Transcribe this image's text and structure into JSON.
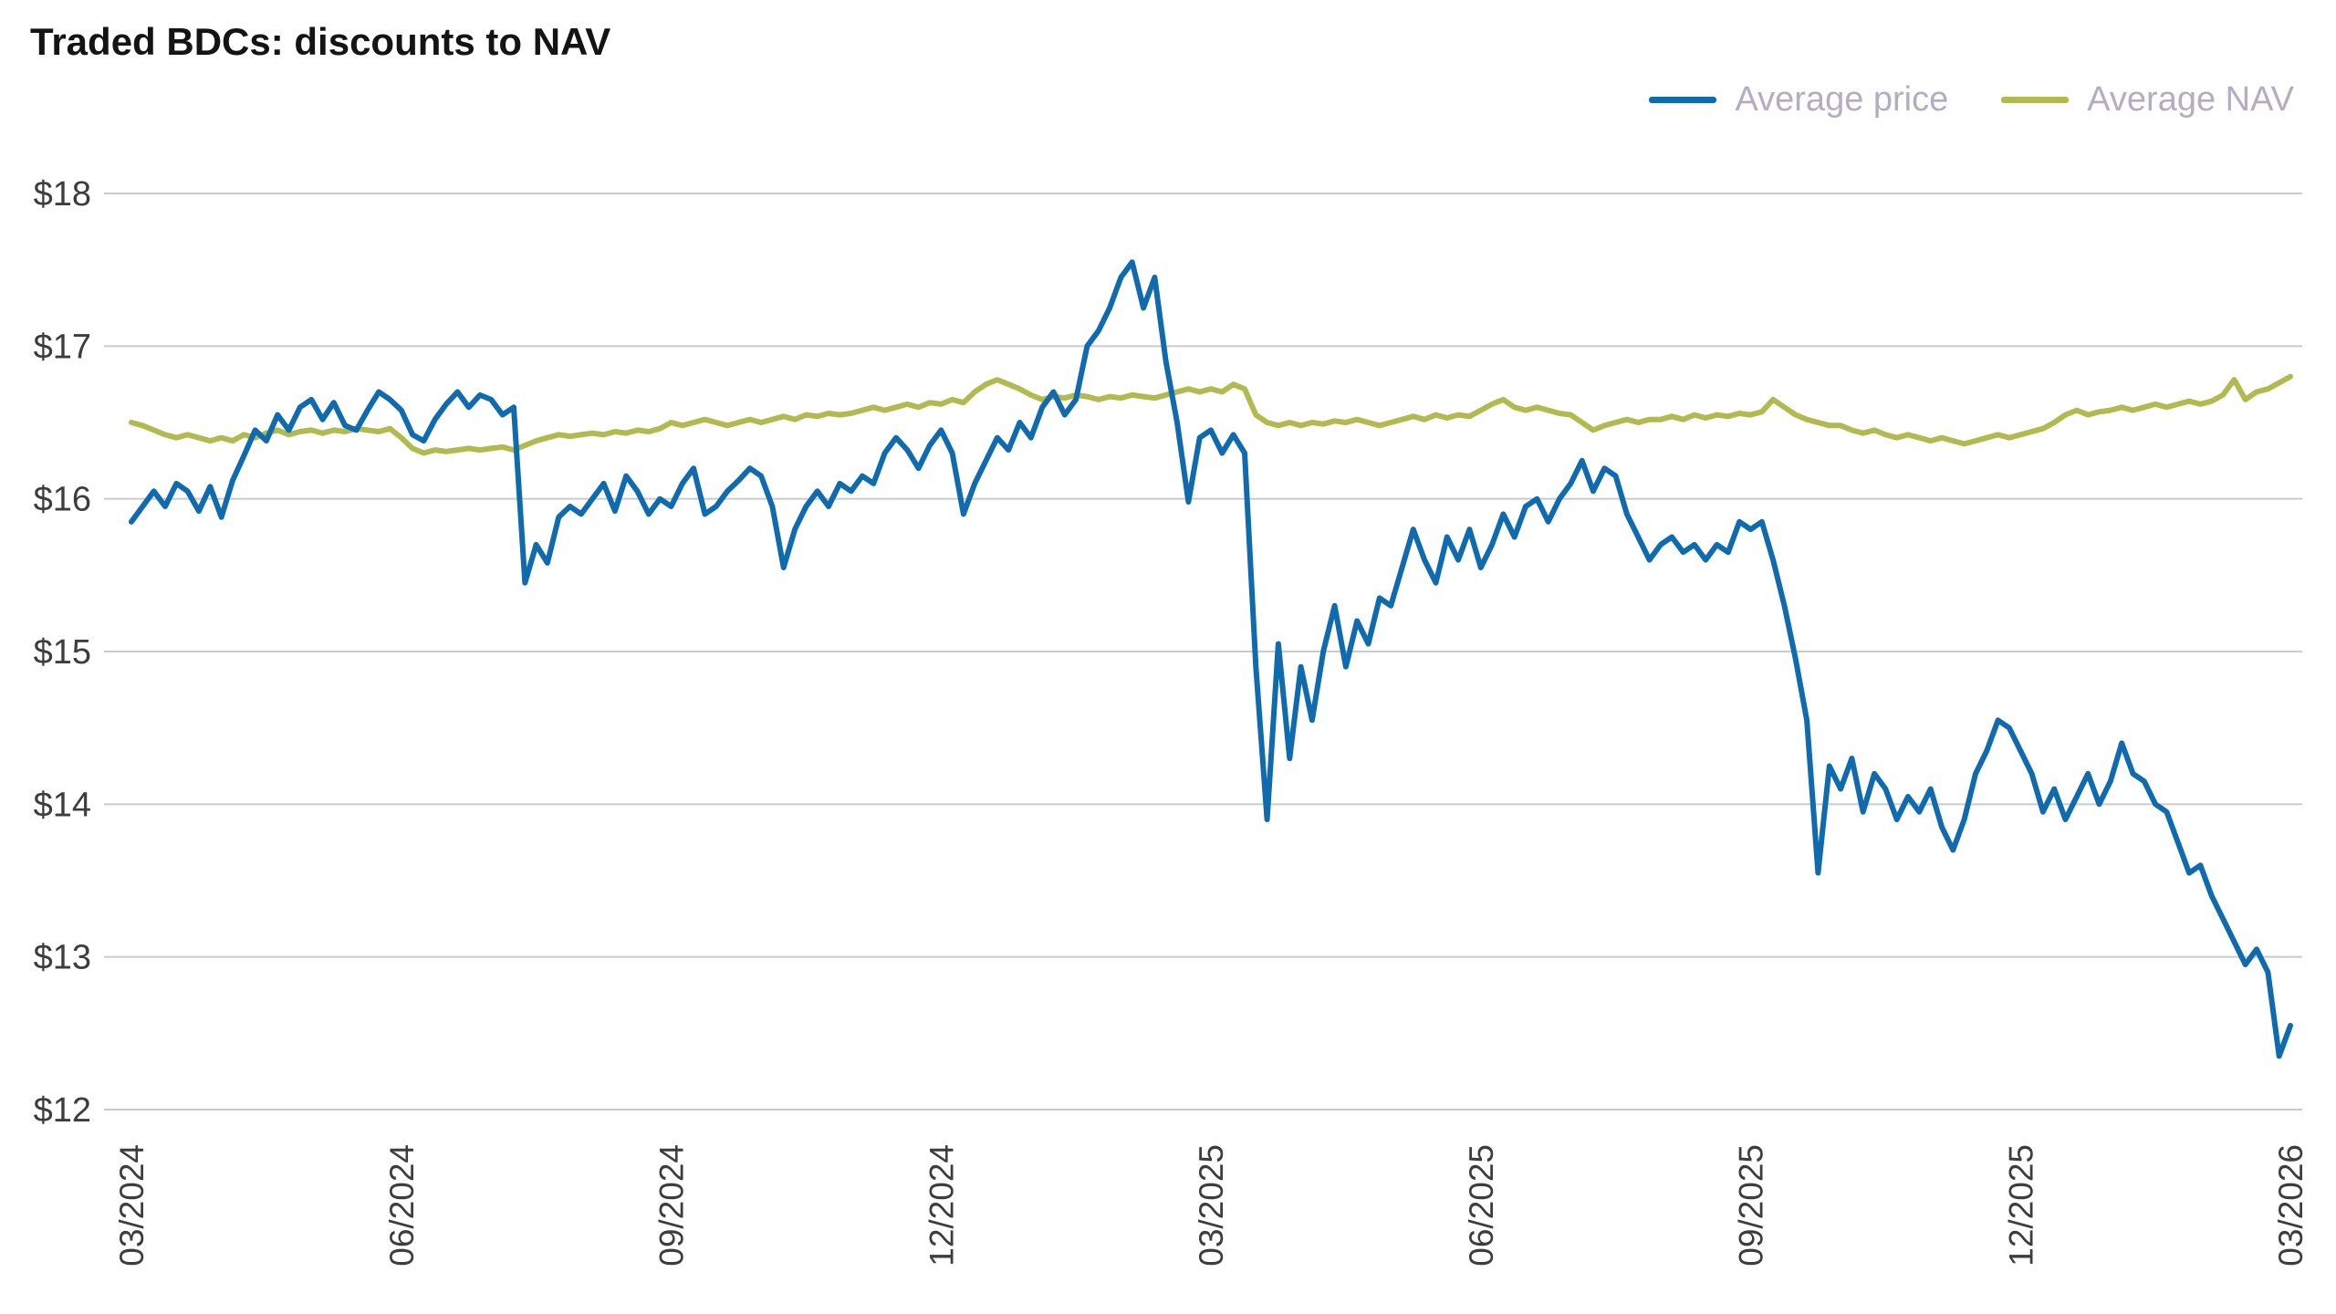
{
  "chart_data": {
    "type": "line",
    "title": "Traded BDCs: discounts to NAV",
    "xlabel": "",
    "ylabel": "",
    "ylim": [
      12,
      18
    ],
    "x_range": [
      0,
      24
    ],
    "x_step_months": 0.125,
    "grid": true,
    "legend_position": "top-right",
    "y_ticks": [
      {
        "value": 18,
        "label": "$18"
      },
      {
        "value": 17,
        "label": "$17"
      },
      {
        "value": 16,
        "label": "$16"
      },
      {
        "value": 15,
        "label": "$15"
      },
      {
        "value": 14,
        "label": "$14"
      },
      {
        "value": 13,
        "label": "$13"
      },
      {
        "value": 12,
        "label": "$12"
      }
    ],
    "x_ticks": [
      {
        "month": 0,
        "label": "03/2024"
      },
      {
        "month": 3,
        "label": "06/2024"
      },
      {
        "month": 6,
        "label": "09/2024"
      },
      {
        "month": 9,
        "label": "12/2024"
      },
      {
        "month": 12,
        "label": "03/2025"
      },
      {
        "month": 15,
        "label": "06/2025"
      },
      {
        "month": 18,
        "label": "09/2025"
      },
      {
        "month": 21,
        "label": "12/2025"
      },
      {
        "month": 24,
        "label": "03/2026"
      }
    ],
    "colors": {
      "price_line": "#0f6bad",
      "nav_line": "#b1ba4e",
      "legend_text": "#b4acc0",
      "grid_line": "#cbcbcb",
      "tick_text": "#3d3d3d",
      "title_text": "#141414"
    },
    "series": [
      {
        "name": "Average price",
        "color": "#0f6bad",
        "values": [
          15.85,
          15.95,
          16.05,
          15.95,
          16.1,
          16.05,
          15.92,
          16.08,
          15.88,
          16.12,
          16.28,
          16.45,
          16.38,
          16.55,
          16.45,
          16.6,
          16.65,
          16.52,
          16.63,
          16.48,
          16.45,
          16.58,
          16.7,
          16.65,
          16.58,
          16.42,
          16.38,
          16.52,
          16.62,
          16.7,
          16.6,
          16.68,
          16.65,
          16.55,
          16.6,
          15.45,
          15.7,
          15.58,
          15.88,
          15.95,
          15.9,
          16.0,
          16.1,
          15.92,
          16.15,
          16.05,
          15.9,
          16.0,
          15.95,
          16.1,
          16.2,
          15.9,
          15.95,
          16.05,
          16.12,
          16.2,
          16.15,
          15.95,
          15.55,
          15.8,
          15.95,
          16.05,
          15.95,
          16.1,
          16.05,
          16.15,
          16.1,
          16.3,
          16.4,
          16.32,
          16.2,
          16.35,
          16.45,
          16.3,
          15.9,
          16.1,
          16.25,
          16.4,
          16.32,
          16.5,
          16.4,
          16.6,
          16.7,
          16.55,
          16.65,
          17.0,
          17.1,
          17.25,
          17.45,
          17.55,
          17.25,
          17.45,
          16.9,
          16.5,
          15.98,
          16.4,
          16.45,
          16.3,
          16.42,
          16.3,
          14.9,
          13.9,
          15.05,
          14.3,
          14.9,
          14.55,
          15.0,
          15.3,
          14.9,
          15.2,
          15.05,
          15.35,
          15.3,
          15.55,
          15.8,
          15.6,
          15.45,
          15.75,
          15.6,
          15.8,
          15.55,
          15.7,
          15.9,
          15.75,
          15.95,
          16.0,
          15.85,
          16.0,
          16.1,
          16.25,
          16.05,
          16.2,
          16.15,
          15.9,
          15.75,
          15.6,
          15.7,
          15.75,
          15.65,
          15.7,
          15.6,
          15.7,
          15.65,
          15.85,
          15.8,
          15.85,
          15.6,
          15.3,
          14.95,
          14.55,
          13.55,
          14.25,
          14.1,
          14.3,
          13.95,
          14.2,
          14.1,
          13.9,
          14.05,
          13.95,
          14.1,
          13.85,
          13.7,
          13.9,
          14.2,
          14.35,
          14.55,
          14.5,
          14.35,
          14.2,
          13.95,
          14.1,
          13.9,
          14.05,
          14.2,
          14.0,
          14.15,
          14.4,
          14.2,
          14.15,
          14.0,
          13.95,
          13.75,
          13.55,
          13.6,
          13.4,
          13.25,
          13.1,
          12.95,
          13.05,
          12.9,
          12.35,
          12.55
        ]
      },
      {
        "name": "Average NAV",
        "color": "#b1ba4e",
        "values": [
          16.5,
          16.48,
          16.45,
          16.42,
          16.4,
          16.42,
          16.4,
          16.38,
          16.4,
          16.38,
          16.42,
          16.4,
          16.43,
          16.45,
          16.42,
          16.44,
          16.45,
          16.43,
          16.45,
          16.44,
          16.46,
          16.45,
          16.44,
          16.46,
          16.4,
          16.33,
          16.3,
          16.32,
          16.31,
          16.32,
          16.33,
          16.32,
          16.33,
          16.34,
          16.32,
          16.35,
          16.38,
          16.4,
          16.42,
          16.41,
          16.42,
          16.43,
          16.42,
          16.44,
          16.43,
          16.45,
          16.44,
          16.46,
          16.5,
          16.48,
          16.5,
          16.52,
          16.5,
          16.48,
          16.5,
          16.52,
          16.5,
          16.52,
          16.54,
          16.52,
          16.55,
          16.54,
          16.56,
          16.55,
          16.56,
          16.58,
          16.6,
          16.58,
          16.6,
          16.62,
          16.6,
          16.63,
          16.62,
          16.65,
          16.63,
          16.7,
          16.75,
          16.78,
          16.75,
          16.72,
          16.68,
          16.65,
          16.67,
          16.66,
          16.68,
          16.67,
          16.65,
          16.67,
          16.66,
          16.68,
          16.67,
          16.66,
          16.68,
          16.7,
          16.72,
          16.7,
          16.72,
          16.7,
          16.75,
          16.72,
          16.55,
          16.5,
          16.48,
          16.5,
          16.48,
          16.5,
          16.49,
          16.51,
          16.5,
          16.52,
          16.5,
          16.48,
          16.5,
          16.52,
          16.54,
          16.52,
          16.55,
          16.53,
          16.55,
          16.54,
          16.58,
          16.62,
          16.65,
          16.6,
          16.58,
          16.6,
          16.58,
          16.56,
          16.55,
          16.5,
          16.45,
          16.48,
          16.5,
          16.52,
          16.5,
          16.52,
          16.52,
          16.54,
          16.52,
          16.55,
          16.53,
          16.55,
          16.54,
          16.56,
          16.55,
          16.57,
          16.65,
          16.6,
          16.55,
          16.52,
          16.5,
          16.48,
          16.48,
          16.45,
          16.43,
          16.45,
          16.42,
          16.4,
          16.42,
          16.4,
          16.38,
          16.4,
          16.38,
          16.36,
          16.38,
          16.4,
          16.42,
          16.4,
          16.42,
          16.44,
          16.46,
          16.5,
          16.55,
          16.58,
          16.55,
          16.57,
          16.58,
          16.6,
          16.58,
          16.6,
          16.62,
          16.6,
          16.62,
          16.64,
          16.62,
          16.64,
          16.68,
          16.78,
          16.65,
          16.7,
          16.72,
          16.76,
          16.8
        ]
      }
    ]
  }
}
